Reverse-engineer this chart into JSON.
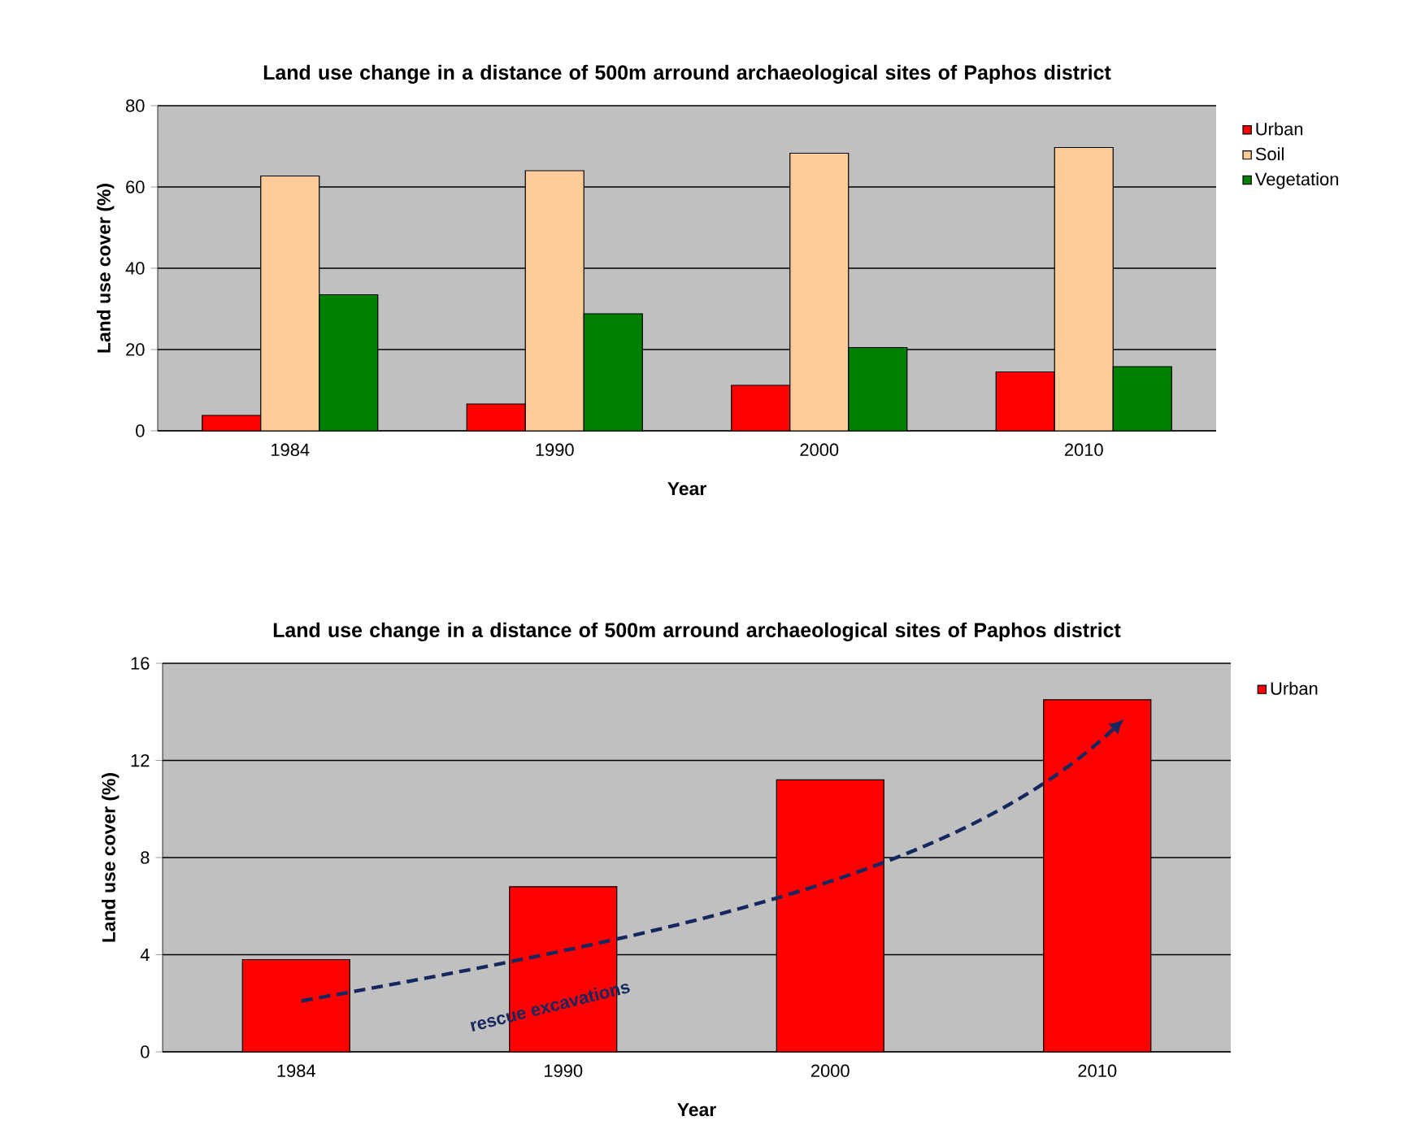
{
  "chart_data": [
    {
      "type": "bar",
      "title": "Land use change in a distance of 500m arround archaeological sites of Paphos district",
      "xlabel": "Year",
      "ylabel": "Land use cover (%)",
      "categories": [
        "1984",
        "1990",
        "2000",
        "2010"
      ],
      "series": [
        {
          "name": "Urban",
          "color": "#ff0000",
          "values": [
            3.8,
            6.6,
            11.2,
            14.5
          ]
        },
        {
          "name": "Soil",
          "color": "#ffcc99",
          "values": [
            62.7,
            64.0,
            68.3,
            69.7
          ]
        },
        {
          "name": "Vegetation",
          "color": "#008000",
          "values": [
            33.5,
            28.8,
            20.5,
            15.8
          ]
        }
      ],
      "ylim": [
        0,
        80
      ],
      "yticks": [
        0,
        20,
        40,
        60,
        80
      ],
      "grid": "y",
      "legend": "right"
    },
    {
      "type": "bar",
      "title": "Land use change in a distance of 500m arround archaeological sites of Paphos district",
      "xlabel": "Year",
      "ylabel": "Land use cover (%)",
      "categories": [
        "1984",
        "1990",
        "2000",
        "2010"
      ],
      "series": [
        {
          "name": "Urban",
          "color": "#ff0000",
          "values": [
            3.8,
            6.8,
            11.2,
            14.5
          ]
        }
      ],
      "ylim": [
        0,
        16
      ],
      "yticks": [
        0,
        4,
        8,
        12,
        16
      ],
      "grid": "y",
      "legend": "right",
      "annotations": [
        "rescue excavations"
      ]
    }
  ]
}
